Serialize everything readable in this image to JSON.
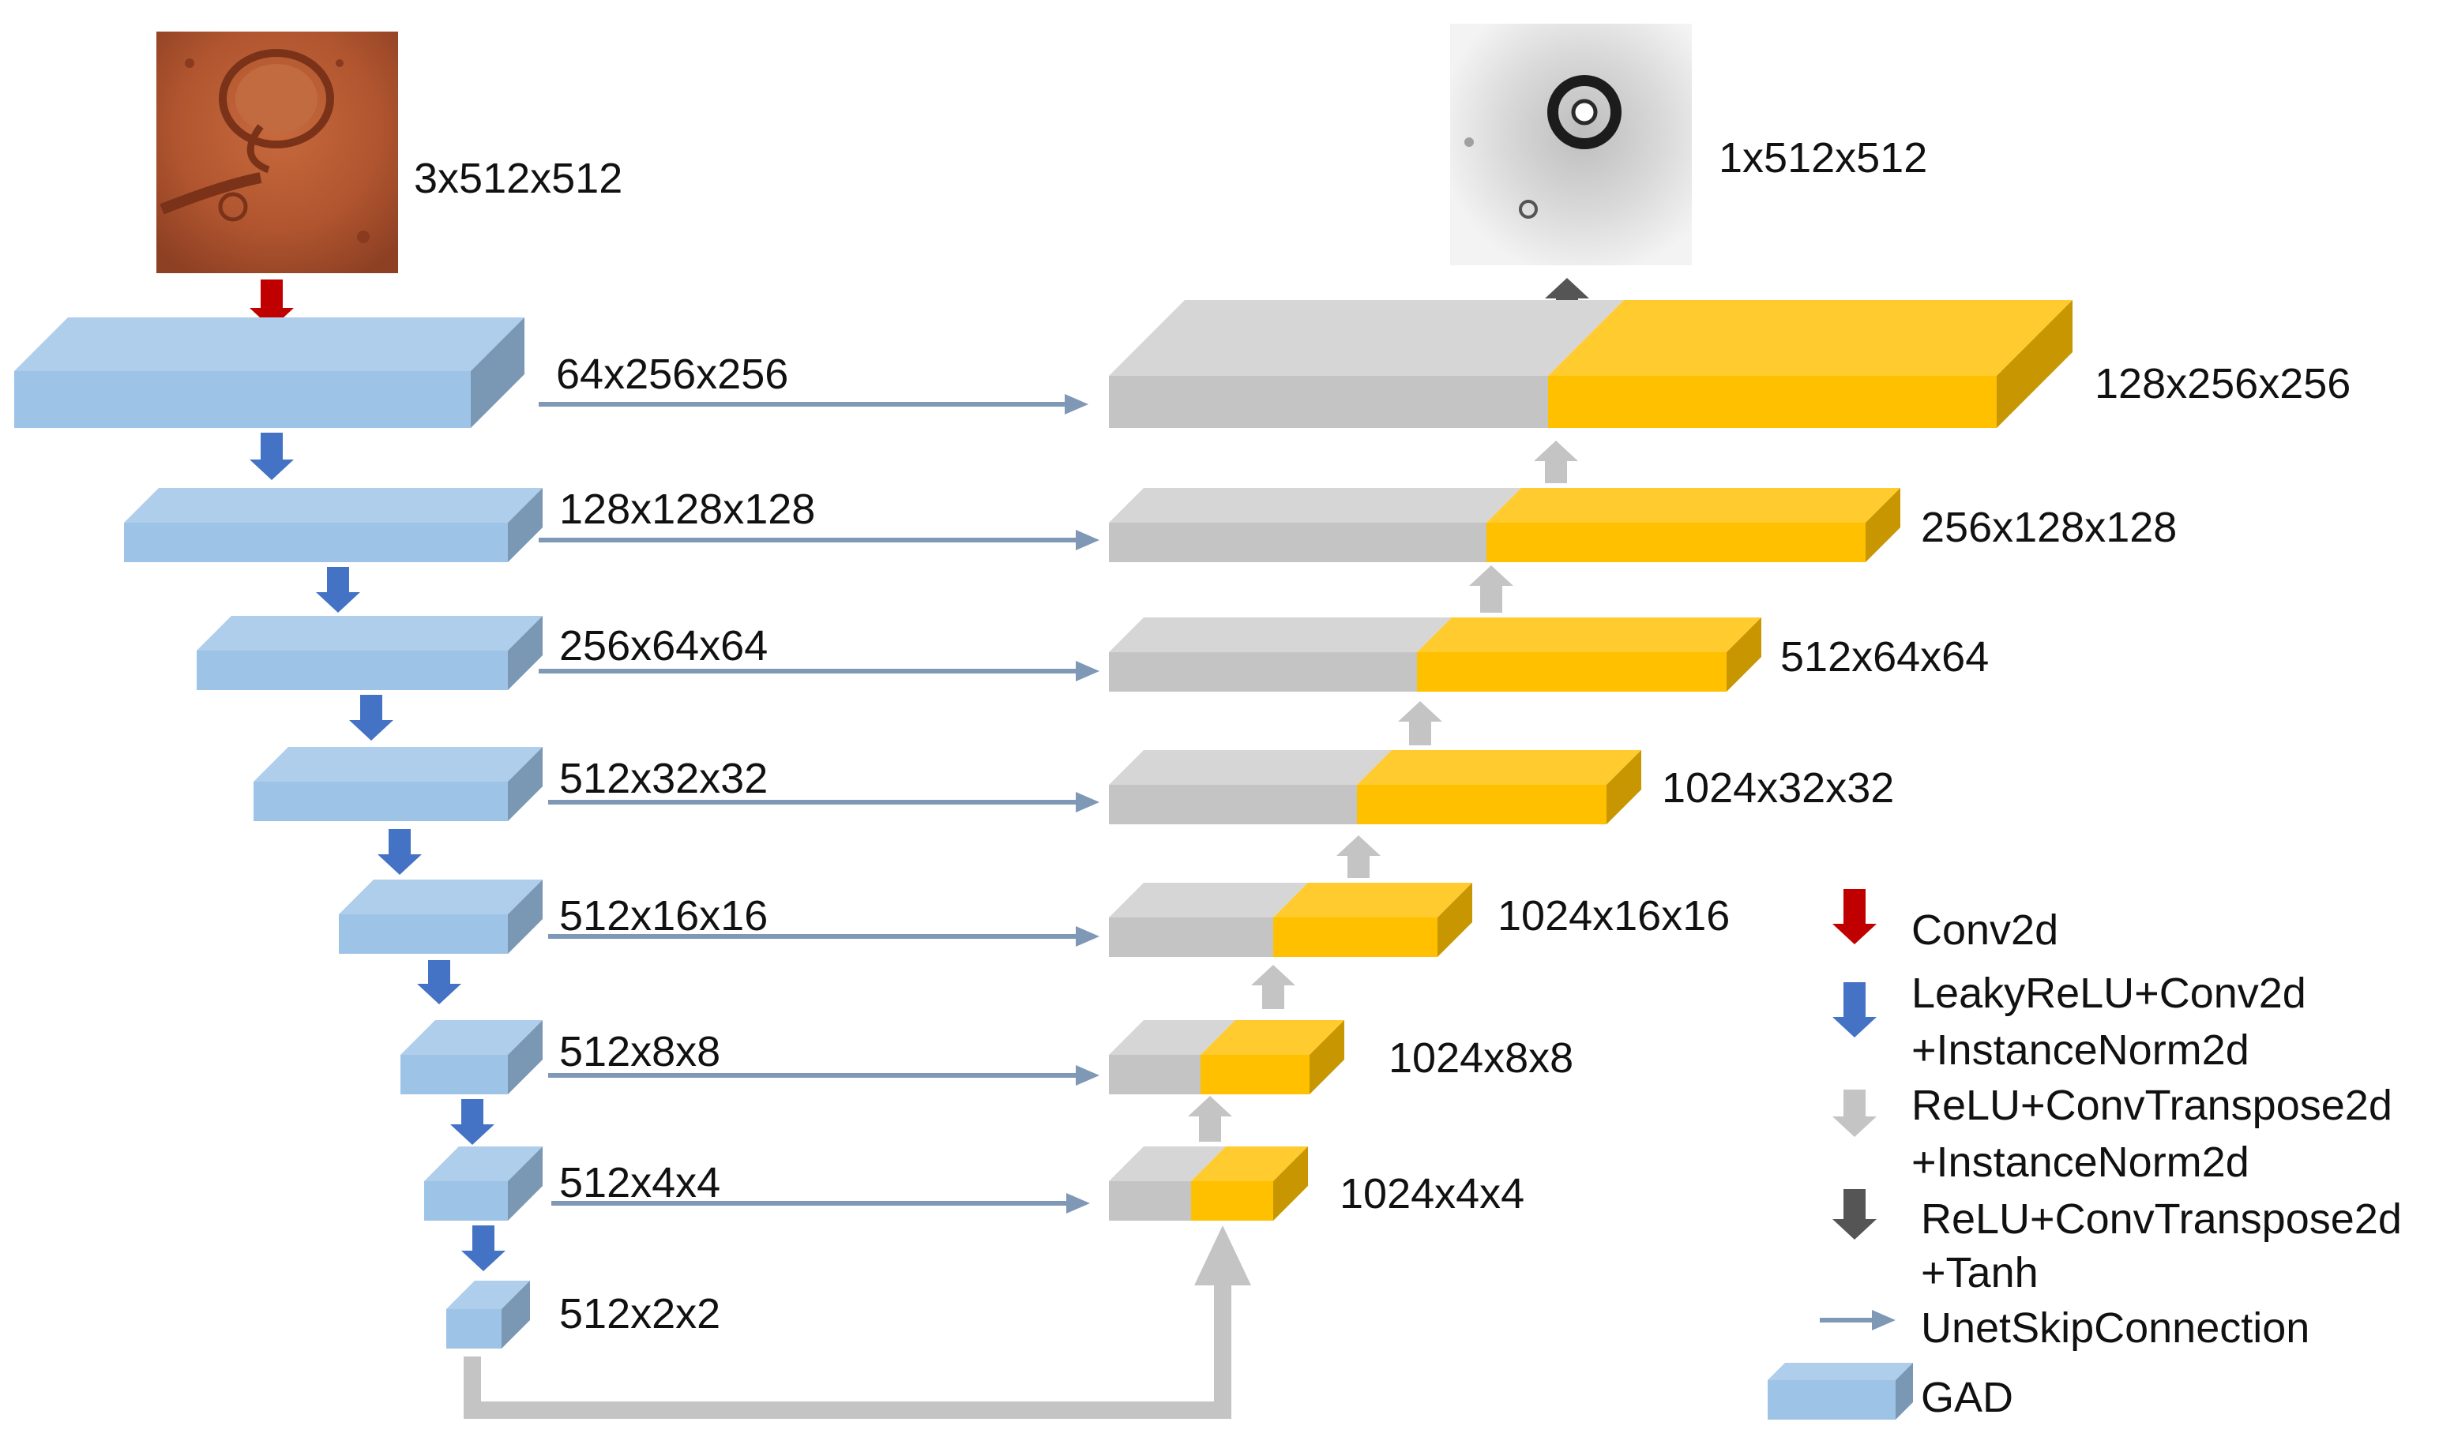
{
  "input": {
    "shape": "3x512x512"
  },
  "output": {
    "shape": "1x512x512"
  },
  "encoder": [
    {
      "shape": "64x256x256"
    },
    {
      "shape": "128x128x128"
    },
    {
      "shape": "256x64x64"
    },
    {
      "shape": "512x32x32"
    },
    {
      "shape": "512x16x16"
    },
    {
      "shape": "512x8x8"
    },
    {
      "shape": "512x4x4"
    },
    {
      "shape": "512x2x2"
    }
  ],
  "decoder": [
    {
      "shape": "128x256x256"
    },
    {
      "shape": "256x128x128"
    },
    {
      "shape": "512x64x64"
    },
    {
      "shape": "1024x32x32"
    },
    {
      "shape": "1024x16x16"
    },
    {
      "shape": "1024x8x8"
    },
    {
      "shape": "1024x4x4"
    }
  ],
  "legend": {
    "conv": {
      "line1": "Conv2d"
    },
    "leaky": {
      "line1": "LeakyReLU+Conv2d",
      "line2": "+InstanceNorm2d"
    },
    "relu_light": {
      "line1": "ReLU+ConvTranspose2d",
      "line2": "+InstanceNorm2d"
    },
    "relu_dark": {
      "line1": "ReLU+ConvTranspose2d",
      "line2": "+Tanh"
    },
    "skip": {
      "line1": "UnetSkipConnection"
    },
    "gad": {
      "line1": "GAD"
    }
  },
  "colors": {
    "encoder_block": "#9dc3e6",
    "decoder_gray": "#c4c4c4",
    "decoder_yellow": "#ffc000",
    "conv_arrow": "#c00000",
    "down_arrow": "#4472c4",
    "up_arrow_light": "#c4c4c4",
    "up_arrow_dark": "#555555",
    "skip_arrow": "#7f98b6"
  },
  "icons": {
    "input_image": "mars-crater-image",
    "output_image": "crater-grayscale-mask"
  }
}
